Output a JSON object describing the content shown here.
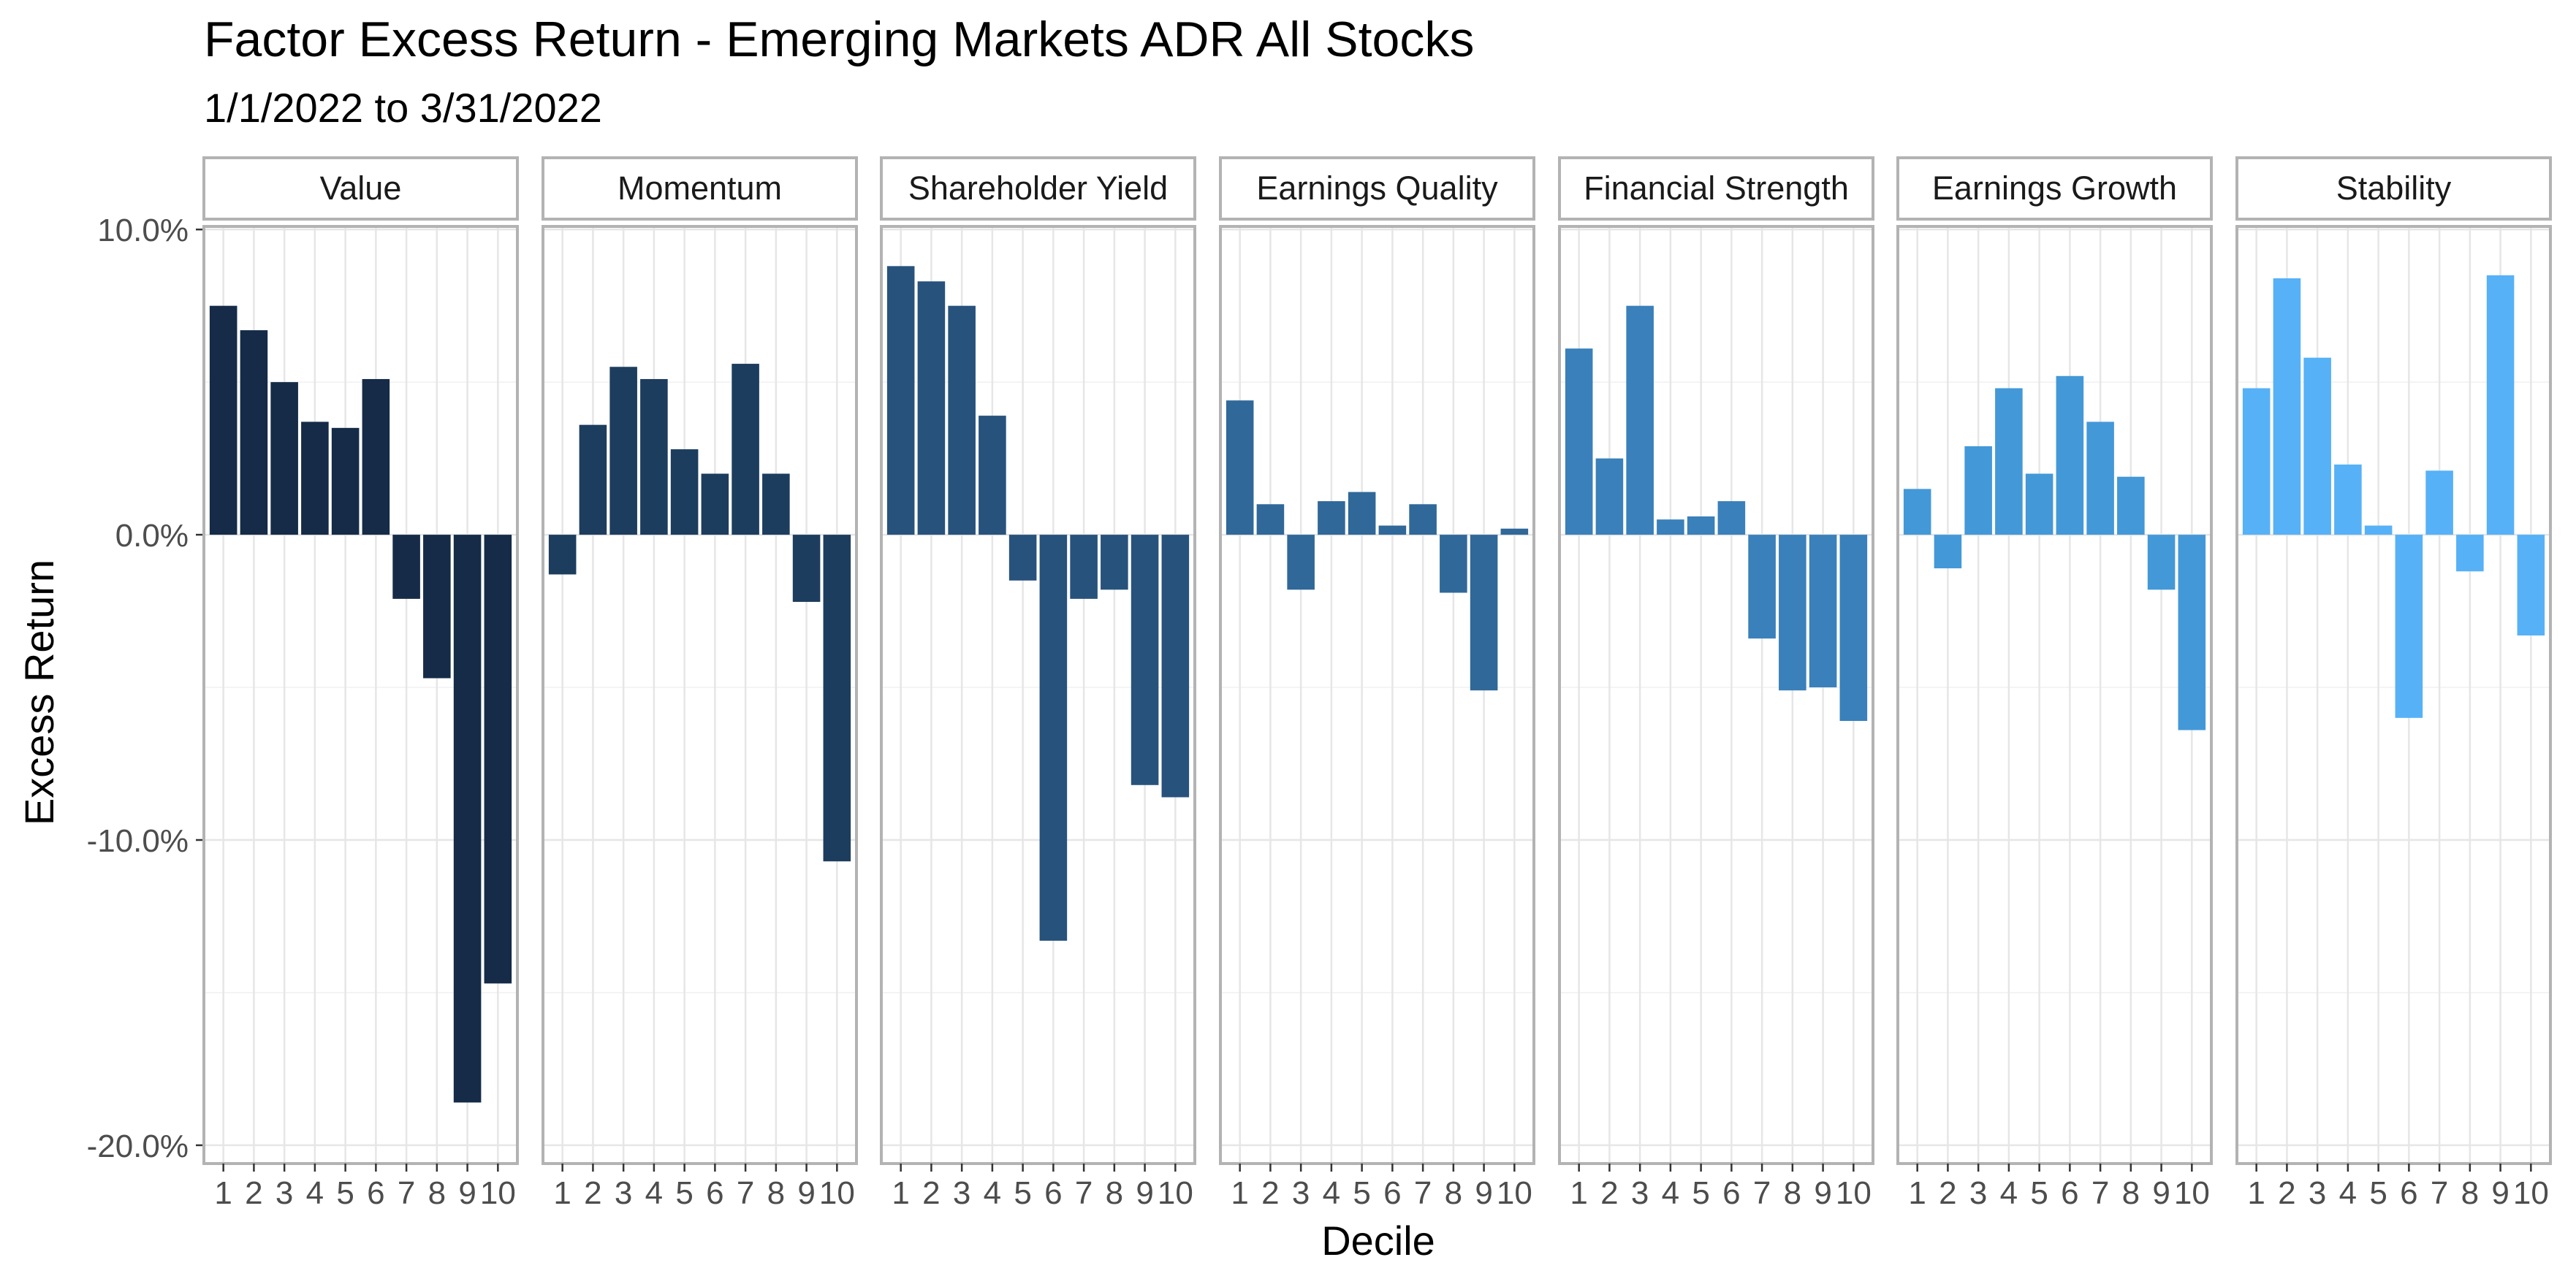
{
  "chart_data": {
    "type": "bar",
    "title": "Factor Excess Return - Emerging Markets ADR All Stocks",
    "subtitle": "1/1/2022 to 3/31/2022",
    "xlabel": "Decile",
    "ylabel": "Excess Return",
    "ylim": [
      -20.6,
      10.1
    ],
    "yticks": [
      10,
      0,
      -10,
      -20
    ],
    "ytick_labels": [
      "10.0%",
      "0.0%",
      "-10.0%",
      "-20.0%"
    ],
    "categories": [
      "1",
      "2",
      "3",
      "4",
      "5",
      "6",
      "7",
      "8",
      "9",
      "10"
    ],
    "series": [
      {
        "name": "Value",
        "color": "#152b47",
        "values": [
          7.5,
          6.7,
          5.0,
          3.7,
          3.5,
          5.1,
          -2.1,
          -4.7,
          -18.6,
          -14.7
        ]
      },
      {
        "name": "Momentum",
        "color": "#1d3d5e",
        "values": [
          -1.3,
          3.6,
          5.5,
          5.1,
          2.8,
          2.0,
          5.6,
          2.0,
          -2.2,
          -10.7
        ]
      },
      {
        "name": "Shareholder Yield",
        "color": "#27527c",
        "values": [
          8.8,
          8.3,
          7.5,
          3.9,
          -1.5,
          -13.3,
          -2.1,
          -1.8,
          -8.2,
          -8.6
        ]
      },
      {
        "name": "Earnings Quality",
        "color": "#306899",
        "values": [
          4.4,
          1.0,
          -1.8,
          1.1,
          1.4,
          0.3,
          1.0,
          -1.9,
          -5.1,
          0.2
        ]
      },
      {
        "name": "Financial Strength",
        "color": "#3a80ba",
        "values": [
          6.1,
          2.5,
          7.5,
          0.5,
          0.6,
          1.1,
          -3.4,
          -5.1,
          -5.0,
          -6.1
        ]
      },
      {
        "name": "Earnings Growth",
        "color": "#4398d8",
        "values": [
          1.5,
          -1.1,
          2.9,
          4.8,
          2.0,
          5.2,
          3.7,
          1.9,
          -1.8,
          -6.4
        ]
      },
      {
        "name": "Stability",
        "color": "#56b1f7",
        "values": [
          4.8,
          8.4,
          5.8,
          2.3,
          0.3,
          -6.0,
          2.1,
          -1.2,
          8.5,
          -3.3
        ]
      }
    ]
  }
}
